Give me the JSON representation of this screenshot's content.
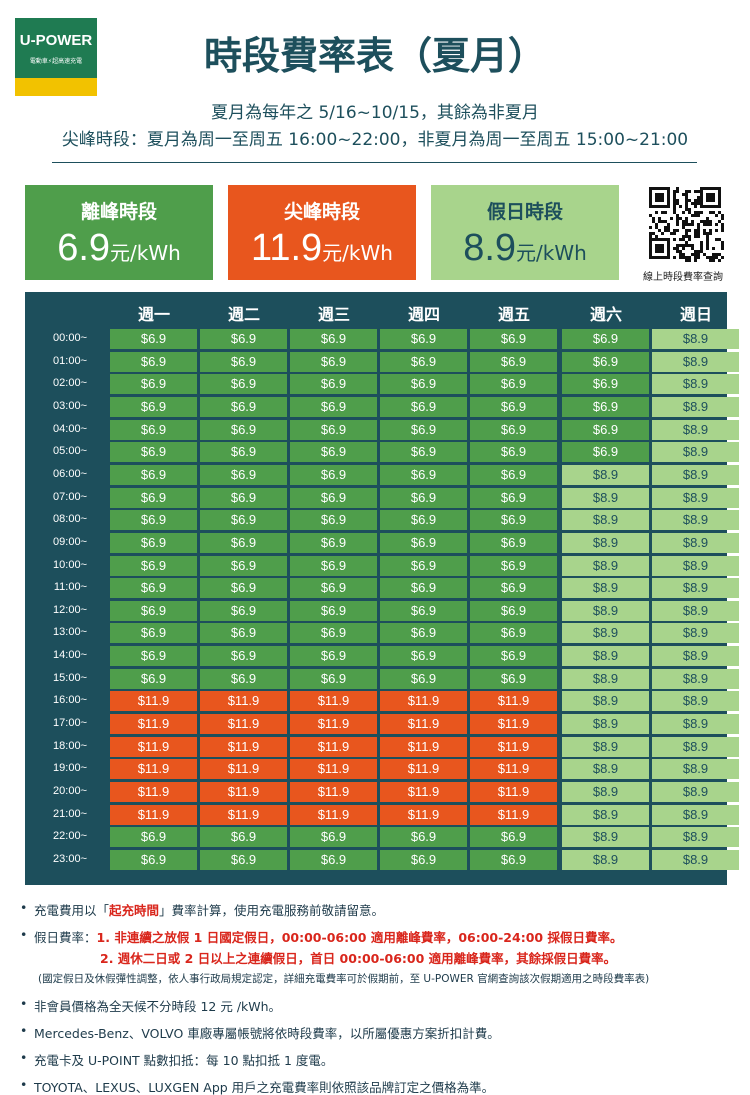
{
  "logo": {
    "name": "U-POWER",
    "tagline": "電動車⚡超高速充電"
  },
  "header": {
    "title": "時段費率表（夏月）",
    "lines": [
      "夏月為每年之 5/16~10/15，其餘為非夏月",
      "尖峰時段：夏月為周一至周五 16:00~22:00，非夏月為周一至周五 15:00~21:00"
    ]
  },
  "rates": [
    {
      "label": "離峰時段",
      "price": "6.9",
      "unit": "元/kWh",
      "color": "#4f9e4b",
      "text_color": "#ffffff"
    },
    {
      "label": "尖峰時段",
      "price": "11.9",
      "unit": "元/kWh",
      "color": "#e8561e",
      "text_color": "#ffffff"
    },
    {
      "label": "假日時段",
      "price": "8.9",
      "unit": "元/kWh",
      "color": "#a8d48c",
      "text_color": "#1d4f5c"
    }
  ],
  "qr_caption": "線上時段費率查詢",
  "table": {
    "columns": [
      "週一",
      "週二",
      "週三",
      "週四",
      "週五",
      "週六",
      "週日"
    ],
    "cell_styles": {
      "$6.9": {
        "bg": "#4f9e4b",
        "fg": "#ffffff"
      },
      "$11.9": {
        "bg": "#e8561e",
        "fg": "#ffffff"
      },
      "$8.9": {
        "bg": "#a8d48c",
        "fg": "#1d4f5c"
      }
    },
    "rows": [
      {
        "time": "00:00~",
        "cells": [
          "$6.9",
          "$6.9",
          "$6.9",
          "$6.9",
          "$6.9",
          "$6.9",
          "$8.9"
        ]
      },
      {
        "time": "01:00~",
        "cells": [
          "$6.9",
          "$6.9",
          "$6.9",
          "$6.9",
          "$6.9",
          "$6.9",
          "$8.9"
        ]
      },
      {
        "time": "02:00~",
        "cells": [
          "$6.9",
          "$6.9",
          "$6.9",
          "$6.9",
          "$6.9",
          "$6.9",
          "$8.9"
        ]
      },
      {
        "time": "03:00~",
        "cells": [
          "$6.9",
          "$6.9",
          "$6.9",
          "$6.9",
          "$6.9",
          "$6.9",
          "$8.9"
        ]
      },
      {
        "time": "04:00~",
        "cells": [
          "$6.9",
          "$6.9",
          "$6.9",
          "$6.9",
          "$6.9",
          "$6.9",
          "$8.9"
        ]
      },
      {
        "time": "05:00~",
        "cells": [
          "$6.9",
          "$6.9",
          "$6.9",
          "$6.9",
          "$6.9",
          "$6.9",
          "$8.9"
        ]
      },
      {
        "time": "06:00~",
        "cells": [
          "$6.9",
          "$6.9",
          "$6.9",
          "$6.9",
          "$6.9",
          "$8.9",
          "$8.9"
        ]
      },
      {
        "time": "07:00~",
        "cells": [
          "$6.9",
          "$6.9",
          "$6.9",
          "$6.9",
          "$6.9",
          "$8.9",
          "$8.9"
        ]
      },
      {
        "time": "08:00~",
        "cells": [
          "$6.9",
          "$6.9",
          "$6.9",
          "$6.9",
          "$6.9",
          "$8.9",
          "$8.9"
        ]
      },
      {
        "time": "09:00~",
        "cells": [
          "$6.9",
          "$6.9",
          "$6.9",
          "$6.9",
          "$6.9",
          "$8.9",
          "$8.9"
        ]
      },
      {
        "time": "10:00~",
        "cells": [
          "$6.9",
          "$6.9",
          "$6.9",
          "$6.9",
          "$6.9",
          "$8.9",
          "$8.9"
        ]
      },
      {
        "time": "11:00~",
        "cells": [
          "$6.9",
          "$6.9",
          "$6.9",
          "$6.9",
          "$6.9",
          "$8.9",
          "$8.9"
        ]
      },
      {
        "time": "12:00~",
        "cells": [
          "$6.9",
          "$6.9",
          "$6.9",
          "$6.9",
          "$6.9",
          "$8.9",
          "$8.9"
        ]
      },
      {
        "time": "13:00~",
        "cells": [
          "$6.9",
          "$6.9",
          "$6.9",
          "$6.9",
          "$6.9",
          "$8.9",
          "$8.9"
        ]
      },
      {
        "time": "14:00~",
        "cells": [
          "$6.9",
          "$6.9",
          "$6.9",
          "$6.9",
          "$6.9",
          "$8.9",
          "$8.9"
        ]
      },
      {
        "time": "15:00~",
        "cells": [
          "$6.9",
          "$6.9",
          "$6.9",
          "$6.9",
          "$6.9",
          "$8.9",
          "$8.9"
        ]
      },
      {
        "time": "16:00~",
        "cells": [
          "$11.9",
          "$11.9",
          "$11.9",
          "$11.9",
          "$11.9",
          "$8.9",
          "$8.9"
        ]
      },
      {
        "time": "17:00~",
        "cells": [
          "$11.9",
          "$11.9",
          "$11.9",
          "$11.9",
          "$11.9",
          "$8.9",
          "$8.9"
        ]
      },
      {
        "time": "18:00~",
        "cells": [
          "$11.9",
          "$11.9",
          "$11.9",
          "$11.9",
          "$11.9",
          "$8.9",
          "$8.9"
        ]
      },
      {
        "time": "19:00~",
        "cells": [
          "$11.9",
          "$11.9",
          "$11.9",
          "$11.9",
          "$11.9",
          "$8.9",
          "$8.9"
        ]
      },
      {
        "time": "20:00~",
        "cells": [
          "$11.9",
          "$11.9",
          "$11.9",
          "$11.9",
          "$11.9",
          "$8.9",
          "$8.9"
        ]
      },
      {
        "time": "21:00~",
        "cells": [
          "$11.9",
          "$11.9",
          "$11.9",
          "$11.9",
          "$11.9",
          "$8.9",
          "$8.9"
        ]
      },
      {
        "time": "22:00~",
        "cells": [
          "$6.9",
          "$6.9",
          "$6.9",
          "$6.9",
          "$6.9",
          "$8.9",
          "$8.9"
        ]
      },
      {
        "time": "23:00~",
        "cells": [
          "$6.9",
          "$6.9",
          "$6.9",
          "$6.9",
          "$6.9",
          "$8.9",
          "$8.9"
        ]
      }
    ]
  },
  "notes": [
    {
      "lines": [
        {
          "kind": "main",
          "segments": [
            {
              "text": "充電費用以「"
            },
            {
              "text": "起充時間",
              "emph": true
            },
            {
              "text": "」費率計算，使用充電服務前敬請留意。"
            }
          ]
        }
      ]
    },
    {
      "lines": [
        {
          "kind": "main",
          "segments": [
            {
              "text": "假日費率："
            },
            {
              "text": "1. 非連續之放假 1 日國定假日，00:00-06:00 適用離峰費率，06:00-24:00 採假日費率。",
              "emph": true
            }
          ]
        },
        {
          "kind": "sub",
          "segments": [
            {
              "text": "2. 週休二日或 2 日以上之連續假日，首日 00:00-06:00 適用離峰費率，其餘採假日費率。",
              "emph": true
            }
          ]
        },
        {
          "kind": "small",
          "segments": [
            {
              "text": "(國定假日及休假彈性調整，依人事行政局規定認定，詳細充電費率可於假期前，至 U-POWER 官網查詢該次假期適用之時段費率表)"
            }
          ]
        }
      ]
    },
    {
      "lines": [
        {
          "kind": "main",
          "segments": [
            {
              "text": "非會員價格為全天候不分時段 12 元 /kWh。"
            }
          ]
        }
      ]
    },
    {
      "lines": [
        {
          "kind": "main",
          "segments": [
            {
              "text": "Mercedes-Benz、VOLVO 車廠專屬帳號將依時段費率，以所屬優惠方案折扣計費。"
            }
          ]
        }
      ]
    },
    {
      "lines": [
        {
          "kind": "main",
          "segments": [
            {
              "text": "充電卡及 U-POINT 點數扣抵：每 10 點扣抵 1 度電。"
            }
          ]
        }
      ]
    },
    {
      "lines": [
        {
          "kind": "main",
          "segments": [
            {
              "text": "TOYOTA、LEXUS、LUXGEN App 用戶之充電費率則依照該品牌訂定之價格為準。"
            }
          ]
        }
      ]
    }
  ]
}
